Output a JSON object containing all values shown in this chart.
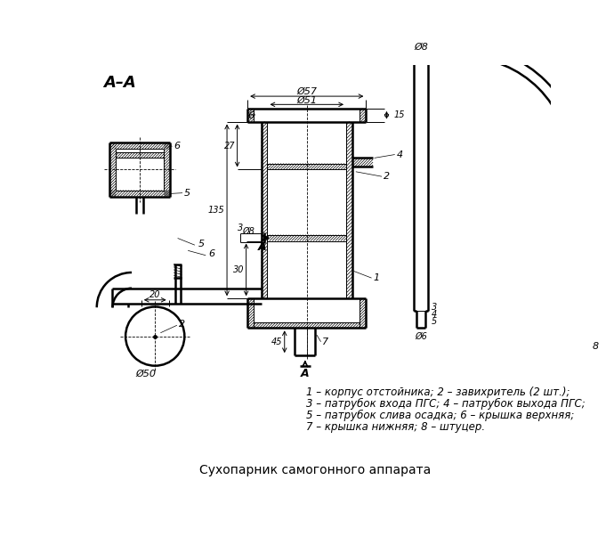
{
  "title": "Сухопарник самогонного аппарата",
  "legend_line1": "1 – корпус отстойника; 2 – завихритель (2 шт.);",
  "legend_line2": "3 – патрубок входа ПГС; 4 – патрубок выхода ПГС;",
  "legend_line3": "5 – патрубок слива осадка; 6 – крышка верхняя;",
  "legend_line4": "7 – крышка нижняя; 8 – штуцер.",
  "aa_label": "А–А",
  "bg_color": "#ffffff"
}
